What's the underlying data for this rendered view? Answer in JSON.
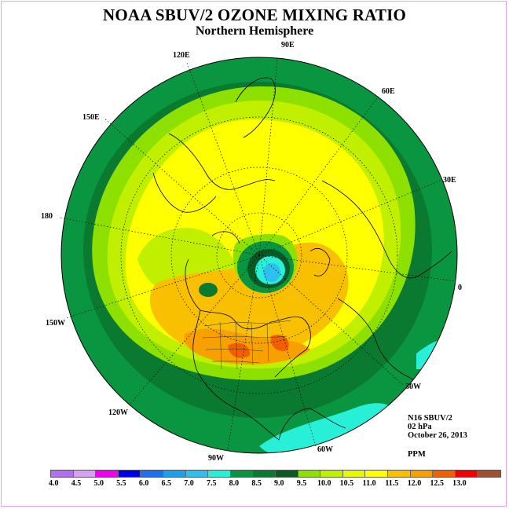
{
  "title": "NOAA SBUV/2 OZONE MIXING RATIO",
  "subtitle": "Northern Hemisphere",
  "info": {
    "satellite": "N16 SBUV/2",
    "level": "02 hPa",
    "date": "October 26, 2013",
    "units": "PPM"
  },
  "longitude_labels": [
    "90E",
    "60E",
    "30E",
    "0",
    "30W",
    "60W",
    "90W",
    "120W",
    "150W",
    "180",
    "150E",
    "120E"
  ],
  "colorbar": {
    "colors": [
      "#b070f0",
      "#d8a0f0",
      "#f000f0",
      "#0000e8",
      "#1e70f0",
      "#1ea0f0",
      "#30c0f0",
      "#28f0d8",
      "#0a9640",
      "#0a7a30",
      "#0a5a26",
      "#8ee000",
      "#c0f000",
      "#e8f800",
      "#ffff00",
      "#f8c000",
      "#f8a000",
      "#f06000",
      "#f00000",
      "#a05030"
    ],
    "ticks": [
      "4.0",
      "4.5",
      "5.0",
      "5.5",
      "6.0",
      "6.5",
      "7.0",
      "7.5",
      "8.0",
      "8.5",
      "9.0",
      "9.5",
      "10.0",
      "10.5",
      "11.0",
      "11.5",
      "12.0",
      "12.5",
      "13.0"
    ]
  },
  "colors": {
    "outer_ring": "#0a9640",
    "dark_ring": "#0a7a30",
    "light_green": "#8ee000",
    "yellow_green": "#c0f000",
    "yellow": "#ffff00",
    "orange": "#f8c000",
    "dark_orange": "#f8a000",
    "red_orange": "#f06000"
  }
}
